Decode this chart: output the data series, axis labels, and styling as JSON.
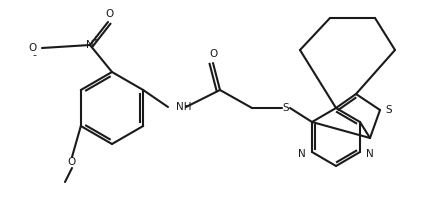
{
  "bg_color": "#ffffff",
  "line_color": "#1a1a1a",
  "line_width": 1.5,
  "figsize": [
    4.28,
    1.99
  ],
  "dpi": 100,
  "xlim": [
    0,
    428
  ],
  "ylim": [
    0,
    199
  ]
}
